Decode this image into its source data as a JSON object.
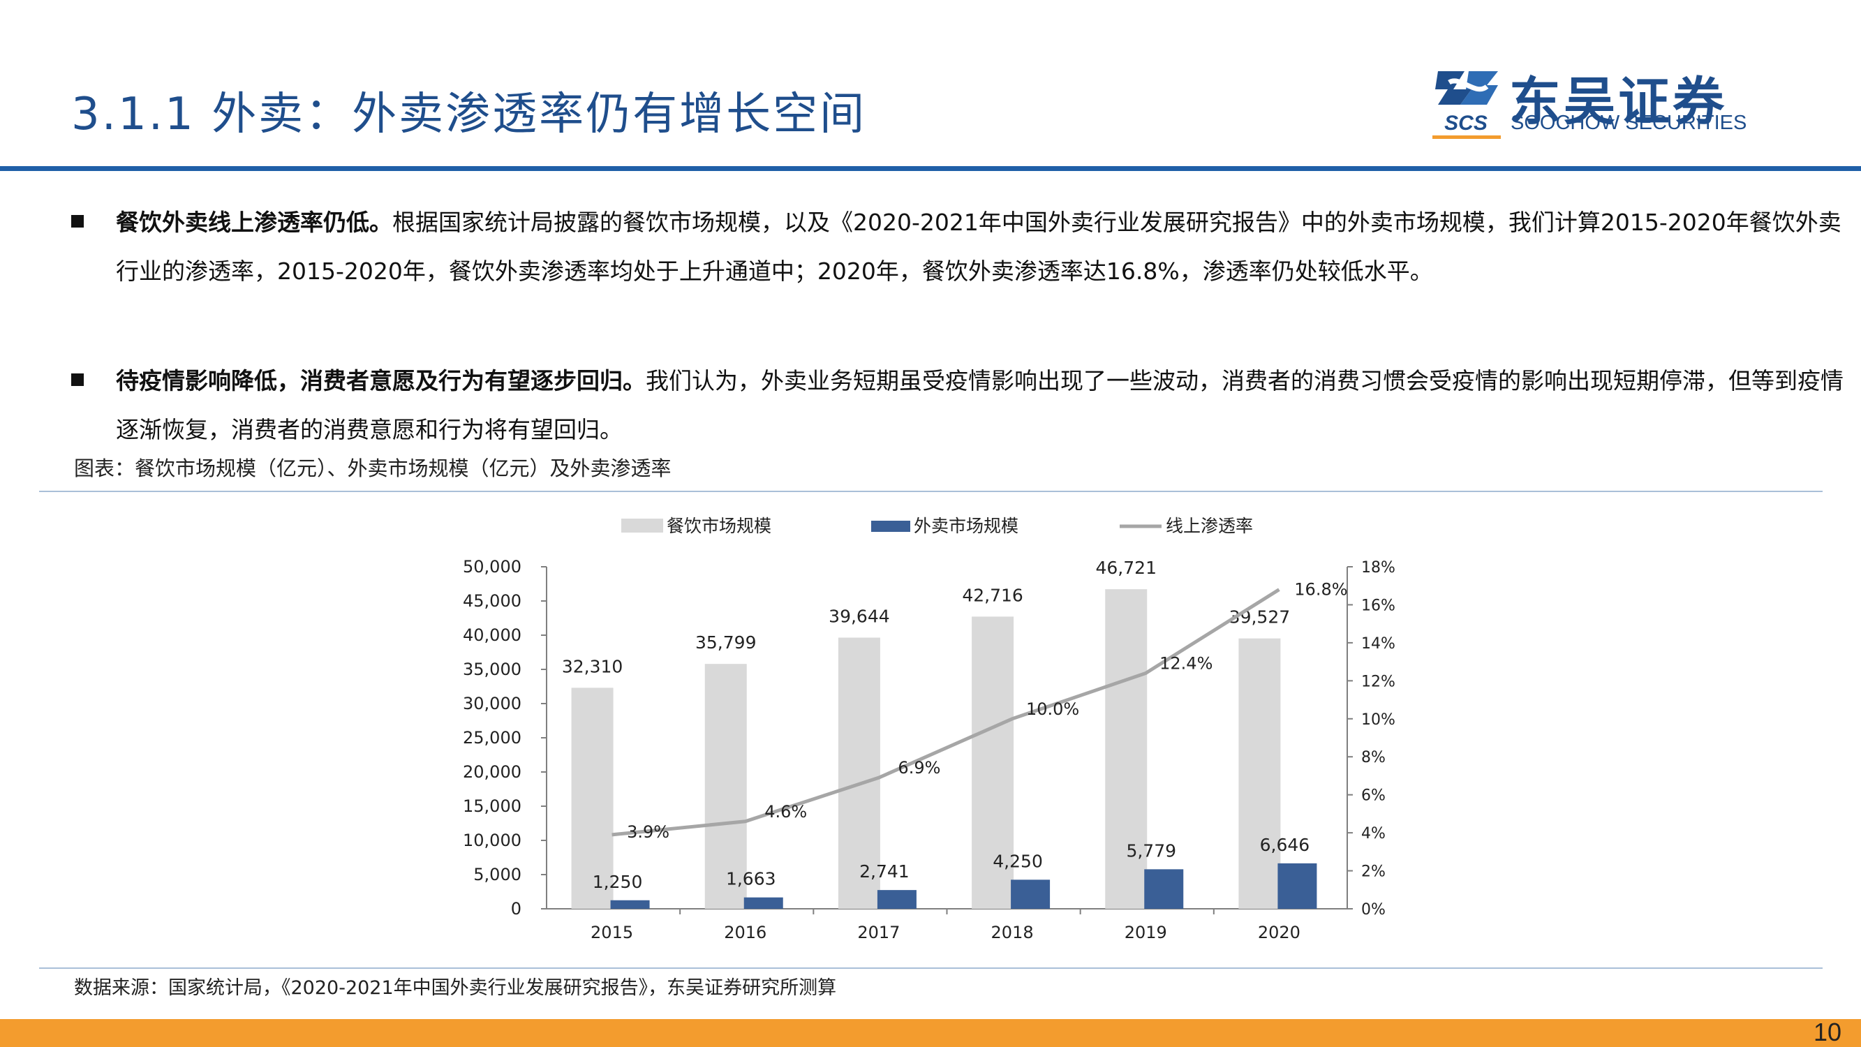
{
  "header": {
    "title": "3.1.1 外卖：外卖渗透率仍有增长空间",
    "logo_name": "东吴证券",
    "logo_sub": "SOOCHOW SECURITIES",
    "logo_abbr": "SCS"
  },
  "bullets": [
    {
      "lead": "餐饮外卖线上渗透率仍低。",
      "text": "根据国家统计局披露的餐饮市场规模，以及《2020-2021年中国外卖行业发展研究报告》中的外卖市场规模，我们计算2015-2020年餐饮外卖行业的渗透率，2015-2020年，餐饮外卖渗透率均处于上升通道中；2020年，餐饮外卖渗透率达16.8%，渗透率仍处较低水平。"
    },
    {
      "lead": "待疫情影响降低，消费者意愿及行为有望逐步回归。",
      "text": "我们认为，外卖业务短期虽受疫情影响出现了一些波动，消费者的消费习惯会受疫情的影响出现短期停滞，但等到疫情逐渐恢复，消费者的消费意愿和行为将有望回归。"
    }
  ],
  "caption": "图表：餐饮市场规模（亿元）、外卖市场规模（亿元）及外卖渗透率",
  "source": "数据来源：国家统计局，《2020-2021年中国外卖行业发展研究报告》，东吴证券研究所测算",
  "page_number": "10",
  "colors": {
    "title": "#1f4e8c",
    "rule": "#1f5fa8",
    "bottom_bar": "#f39c2e",
    "restaurant_bar": "#d9d9d9",
    "takeout_bar": "#3a5f96",
    "penetration_line": "#a6a6a6"
  },
  "chart_data": {
    "type": "bar",
    "categories": [
      "2015",
      "2016",
      "2017",
      "2018",
      "2019",
      "2020"
    ],
    "series": [
      {
        "name": "餐饮市场规模",
        "type": "bar",
        "axis": "left",
        "values": [
          32310,
          35799,
          39644,
          42716,
          46721,
          39527
        ],
        "labels": [
          "32,310",
          "35,799",
          "39,644",
          "42,716",
          "46,721",
          "39,527"
        ]
      },
      {
        "name": "外卖市场规模",
        "type": "bar",
        "axis": "left",
        "values": [
          1250,
          1663,
          2741,
          4250,
          5779,
          6646
        ],
        "labels": [
          "1,250",
          "1,663",
          "2,741",
          "4,250",
          "5,779",
          "6,646"
        ]
      },
      {
        "name": "线上渗透率",
        "type": "line",
        "axis": "right",
        "values": [
          3.9,
          4.6,
          6.9,
          10.0,
          12.4,
          16.8
        ],
        "labels": [
          "3.9%",
          "4.6%",
          "6.9%",
          "10.0%",
          "12.4%",
          "16.8%"
        ]
      }
    ],
    "y_left": {
      "range": [
        0,
        50000
      ],
      "ticks": [
        "0",
        "5,000",
        "10,000",
        "15,000",
        "20,000",
        "25,000",
        "30,000",
        "35,000",
        "40,000",
        "45,000",
        "50,000"
      ]
    },
    "y_right": {
      "range": [
        0,
        18
      ],
      "ticks": [
        "0%",
        "2%",
        "4%",
        "6%",
        "8%",
        "10%",
        "12%",
        "14%",
        "16%",
        "18%"
      ]
    },
    "legend_position": "top",
    "grid": false
  }
}
